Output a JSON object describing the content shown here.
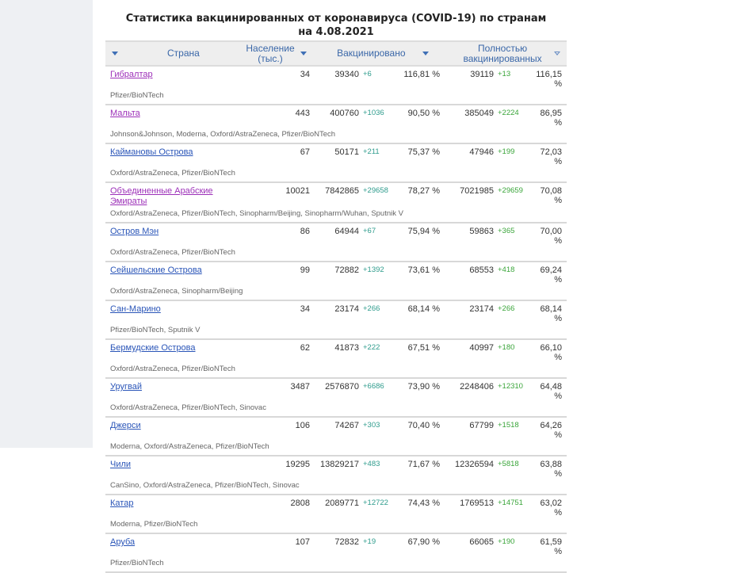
{
  "title_line1": "Статистика вакцинированных от коронавируса (COVID-19) по странам",
  "title_line2": "на 4.08.2021",
  "table": {
    "headers": {
      "country": "Страна",
      "population_line1": "Население",
      "population_line2": "(тыс.)",
      "vaccinated": "Вакцинировано",
      "fully_line1": "Полностью",
      "fully_line2": "вакцинированных"
    },
    "rows": [
      {
        "country": "Гибралтар",
        "visited": true,
        "population": "34",
        "vaccinated": "39340",
        "vaccinated_delta": "+6",
        "vaccinated_pct": "116,81 %",
        "fully": "39119",
        "fully_delta": "+13",
        "fully_pct": "116,15 %",
        "vaccines": "Pfizer/BioNTech"
      },
      {
        "country": "Мальта",
        "visited": true,
        "population": "443",
        "vaccinated": "400760",
        "vaccinated_delta": "+1036",
        "vaccinated_pct": "90,50 %",
        "fully": "385049",
        "fully_delta": "+2224",
        "fully_pct": "86,95 %",
        "vaccines": "Johnson&Johnson, Moderna, Oxford/AstraZeneca, Pfizer/BioNTech"
      },
      {
        "country": "Каймановы Острова",
        "visited": false,
        "population": "67",
        "vaccinated": "50171",
        "vaccinated_delta": "+211",
        "vaccinated_pct": "75,37 %",
        "fully": "47946",
        "fully_delta": "+199",
        "fully_pct": "72,03 %",
        "vaccines": "Oxford/AstraZeneca, Pfizer/BioNTech"
      },
      {
        "country": "Объединенные Арабские Эмираты",
        "visited": true,
        "population": "10021",
        "vaccinated": "7842865",
        "vaccinated_delta": "+29658",
        "vaccinated_pct": "78,27 %",
        "fully": "7021985",
        "fully_delta": "+29659",
        "fully_pct": "70,08 %",
        "vaccines": "Oxford/AstraZeneca, Pfizer/BioNTech, Sinopharm/Beijing, Sinopharm/Wuhan, Sputnik V"
      },
      {
        "country": "Остров Мэн",
        "visited": false,
        "population": "86",
        "vaccinated": "64944",
        "vaccinated_delta": "+67",
        "vaccinated_pct": "75,94 %",
        "fully": "59863",
        "fully_delta": "+365",
        "fully_pct": "70,00 %",
        "vaccines": "Oxford/AstraZeneca, Pfizer/BioNTech"
      },
      {
        "country": "Сейшельские Острова",
        "visited": false,
        "population": "99",
        "vaccinated": "72882",
        "vaccinated_delta": "+1392",
        "vaccinated_pct": "73,61 %",
        "fully": "68553",
        "fully_delta": "+418",
        "fully_pct": "69,24 %",
        "vaccines": "Oxford/AstraZeneca, Sinopharm/Beijing"
      },
      {
        "country": "Сан-Марино",
        "visited": false,
        "population": "34",
        "vaccinated": "23174",
        "vaccinated_delta": "+266",
        "vaccinated_pct": "68,14 %",
        "fully": "23174",
        "fully_delta": "+266",
        "fully_pct": "68,14 %",
        "vaccines": "Pfizer/BioNTech, Sputnik V"
      },
      {
        "country": "Бермудские Острова",
        "visited": false,
        "population": "62",
        "vaccinated": "41873",
        "vaccinated_delta": "+222",
        "vaccinated_pct": "67,51 %",
        "fully": "40997",
        "fully_delta": "+180",
        "fully_pct": "66,10 %",
        "vaccines": "Oxford/AstraZeneca, Pfizer/BioNTech"
      },
      {
        "country": "Уругвай",
        "visited": false,
        "population": "3487",
        "vaccinated": "2576870",
        "vaccinated_delta": "+6686",
        "vaccinated_pct": "73,90 %",
        "fully": "2248406",
        "fully_delta": "+12310",
        "fully_pct": "64,48 %",
        "vaccines": "Oxford/AstraZeneca, Pfizer/BioNTech, Sinovac"
      },
      {
        "country": "Джерси",
        "visited": false,
        "population": "106",
        "vaccinated": "74267",
        "vaccinated_delta": "+303",
        "vaccinated_pct": "70,40 %",
        "fully": "67799",
        "fully_delta": "+1518",
        "fully_pct": "64,26 %",
        "vaccines": "Moderna, Oxford/AstraZeneca, Pfizer/BioNTech"
      },
      {
        "country": "Чили",
        "visited": false,
        "population": "19295",
        "vaccinated": "13829217",
        "vaccinated_delta": "+483",
        "vaccinated_pct": "71,67 %",
        "fully": "12326594",
        "fully_delta": "+5818",
        "fully_pct": "63,88 %",
        "vaccines": "CanSino, Oxford/AstraZeneca, Pfizer/BioNTech, Sinovac"
      },
      {
        "country": "Катар",
        "visited": false,
        "population": "2808",
        "vaccinated": "2089771",
        "vaccinated_delta": "+12722",
        "vaccinated_pct": "74,43 %",
        "fully": "1769513",
        "fully_delta": "+14751",
        "fully_pct": "63,02 %",
        "vaccines": "Moderna, Pfizer/BioNTech"
      },
      {
        "country": "Аруба",
        "visited": false,
        "population": "107",
        "vaccinated": "72832",
        "vaccinated_delta": "+19",
        "vaccinated_pct": "67,90 %",
        "fully": "66065",
        "fully_delta": "+190",
        "fully_pct": "61,59 %",
        "vaccines": "Pfizer/BioNTech"
      }
    ]
  },
  "colors": {
    "link": "#2a55b8",
    "link_visited": "#9c2fb8",
    "vaccinated_delta": "#2f9c8d",
    "fully_delta": "#3aa53a",
    "header_text": "#3a67a8"
  }
}
